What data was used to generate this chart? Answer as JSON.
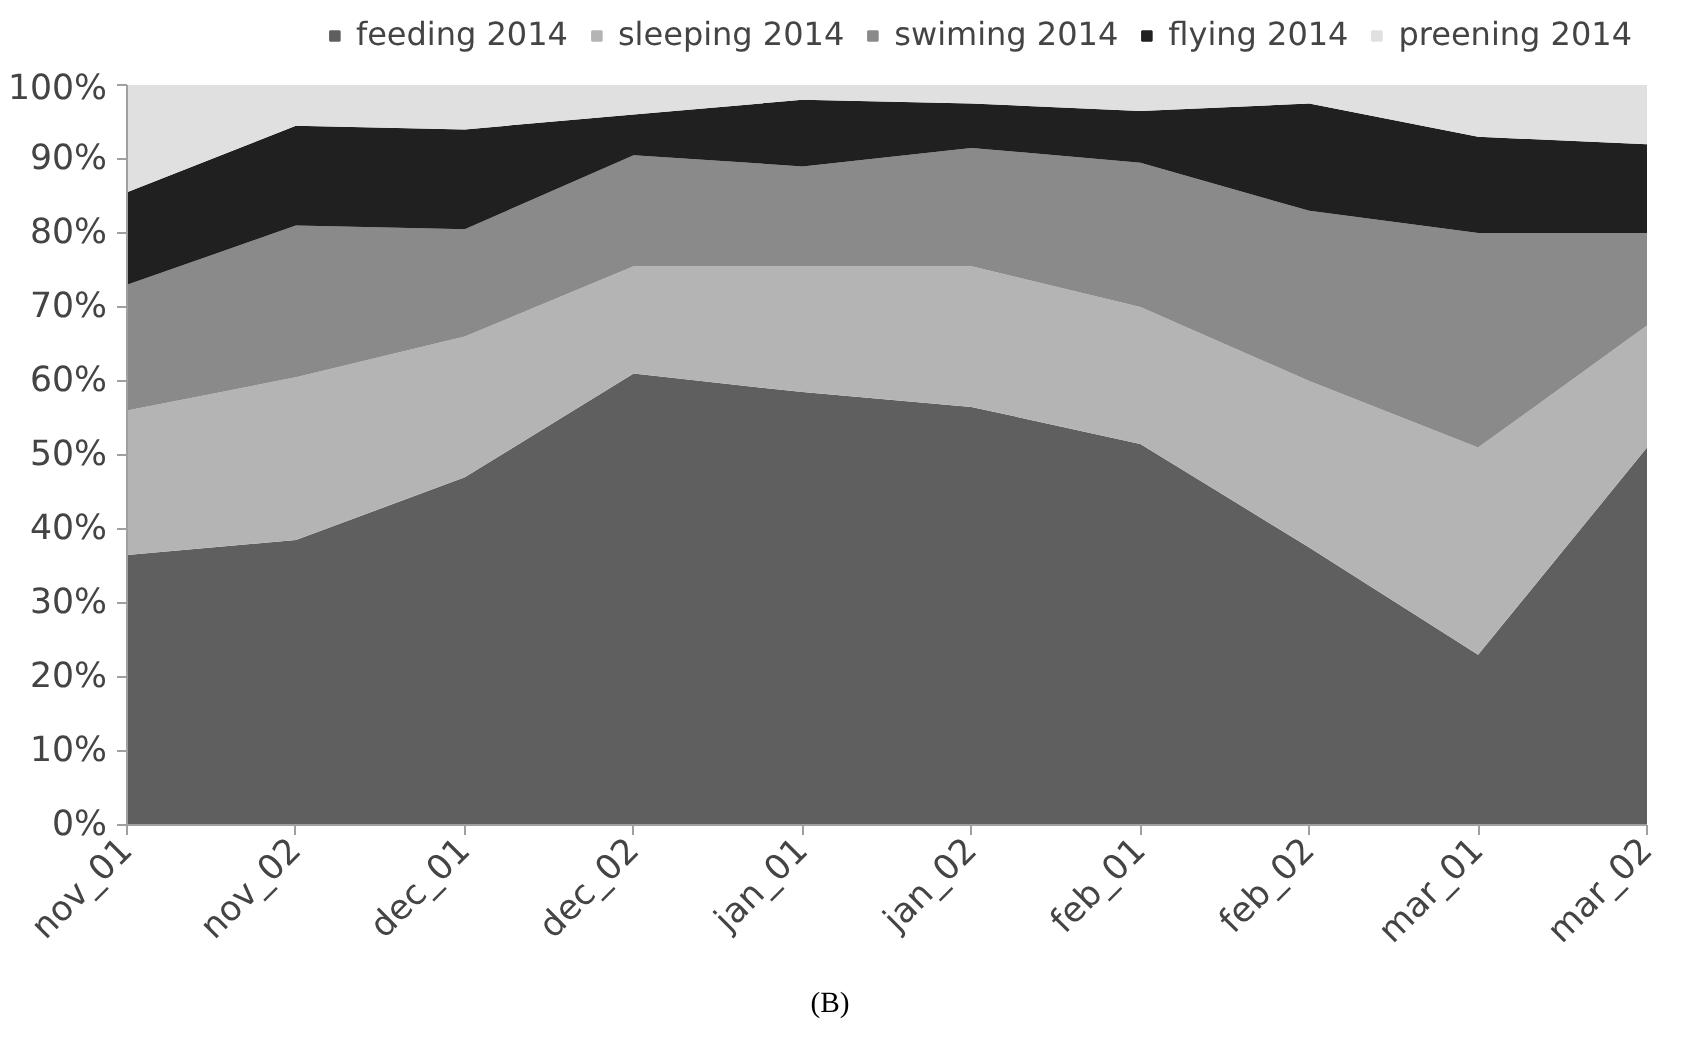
{
  "chart_data": {
    "type": "area",
    "stacked": true,
    "categories": [
      "nov_01",
      "nov_02",
      "dec_01",
      "dec_02",
      "jan_01",
      "jan_02",
      "feb_01",
      "feb_02",
      "mar_01",
      "mar_02"
    ],
    "series": [
      {
        "name": "feeding 2014",
        "color": "#5f5f5f",
        "values": [
          36.5,
          38.5,
          47,
          61,
          58.5,
          56.5,
          51.5,
          37.5,
          23,
          51
        ]
      },
      {
        "name": "sleeping 2014",
        "color": "#b4b4b4",
        "values": [
          19.5,
          22,
          19,
          14.5,
          17,
          19,
          18.5,
          22.5,
          28,
          16.5
        ]
      },
      {
        "name": "swiming 2014",
        "color": "#8a8a8a",
        "values": [
          17,
          20.5,
          14.5,
          15,
          13.5,
          16,
          19.5,
          23,
          29,
          12.5
        ]
      },
      {
        "name": "flying 2014",
        "color": "#202020",
        "values": [
          12.5,
          13.5,
          13.5,
          5.5,
          9,
          6,
          7,
          14.5,
          13,
          12
        ]
      },
      {
        "name": "preening 2014",
        "color": "#e0e0e0",
        "values": [
          14.5,
          5.5,
          6,
          4,
          2,
          2.5,
          3.5,
          2.5,
          7,
          8
        ]
      }
    ],
    "ylim": [
      0,
      100
    ],
    "yticks": [
      {
        "value": 0,
        "label": "0%"
      },
      {
        "value": 10,
        "label": "10%"
      },
      {
        "value": 20,
        "label": "20%"
      },
      {
        "value": 30,
        "label": "30%"
      },
      {
        "value": 40,
        "label": "40%"
      },
      {
        "value": 50,
        "label": "50%"
      },
      {
        "value": 60,
        "label": "60%"
      },
      {
        "value": 70,
        "label": "70%"
      },
      {
        "value": 80,
        "label": "80%"
      },
      {
        "value": 90,
        "label": "90%"
      },
      {
        "value": 100,
        "label": "100%"
      }
    ],
    "grid": false,
    "legend": "top",
    "annotations": [
      "(B)"
    ]
  }
}
